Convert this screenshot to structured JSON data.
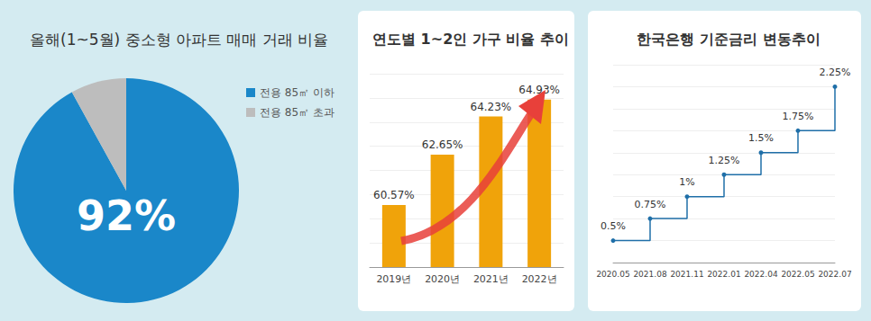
{
  "chart_data": [
    {
      "type": "pie",
      "title": "올해(1~5월) 중소형 아파트 매매 거래 비율",
      "categories": [
        "전용 85㎡ 이하",
        "전용 85㎡ 초과"
      ],
      "values": [
        92,
        8
      ],
      "value_labels": [
        "92%",
        null
      ],
      "colors": [
        "#1a87c9",
        "#bdbdbd"
      ],
      "legend": "right"
    },
    {
      "type": "bar",
      "title": "연도별 1~2인 가구 비율 추이",
      "categories": [
        "2019년",
        "2020년",
        "2021년",
        "2022년"
      ],
      "values": [
        60.57,
        62.65,
        64.23,
        64.93
      ],
      "value_labels": [
        "60.57%",
        "62.65%",
        "64.23%",
        "64.93%"
      ],
      "color": "#f0a30a",
      "ylim": [
        58,
        66
      ],
      "yticks": [
        58,
        59,
        60,
        61,
        62,
        63,
        64,
        65,
        66
      ],
      "grid": true,
      "tick_labels": "x",
      "data_labels": true
    },
    {
      "type": "line",
      "title": "한국은행 기준금리 변동추이",
      "categories": [
        "2020.05",
        "2021.08",
        "2021.11",
        "2022.01",
        "2022.04",
        "2022.05",
        "2022.07"
      ],
      "values": [
        0.5,
        0.75,
        1,
        1.25,
        1.5,
        1.75,
        2.25
      ],
      "value_labels": [
        "0.5%",
        "0.75%",
        "1%",
        "1.25%",
        "1.5%",
        "1.75%",
        "2.25%"
      ],
      "color": "#1f6fa8",
      "ylim": [
        0.25,
        2.5
      ],
      "yticks": [
        0.25,
        0.5,
        0.75,
        1,
        1.25,
        1.5,
        1.75,
        2,
        2.25,
        2.5
      ],
      "grid": true,
      "tick_labels": "x",
      "marker": "circle",
      "line_style": "step",
      "data_labels": true
    }
  ]
}
